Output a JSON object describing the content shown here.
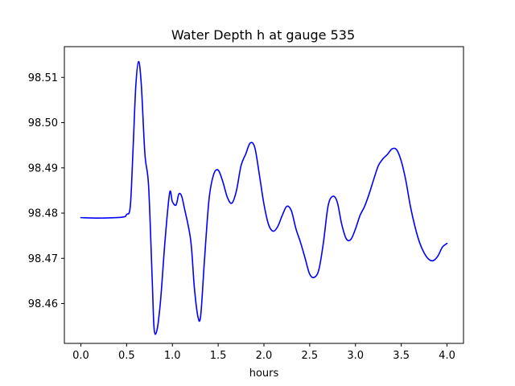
{
  "chart_data": {
    "type": "line",
    "title": "Water Depth h at gauge 535",
    "xlabel": "hours",
    "ylabel": "",
    "xlim": [
      -0.18,
      4.18
    ],
    "ylim": [
      98.4512,
      98.5168
    ],
    "xticks": [
      0.0,
      0.5,
      1.0,
      1.5,
      2.0,
      2.5,
      3.0,
      3.5,
      4.0
    ],
    "xtick_labels": [
      "0.0",
      "0.5",
      "1.0",
      "1.5",
      "2.0",
      "2.5",
      "3.0",
      "3.5",
      "4.0"
    ],
    "yticks": [
      98.46,
      98.47,
      98.48,
      98.49,
      98.5,
      98.51
    ],
    "ytick_labels": [
      "98.46",
      "98.47",
      "98.48",
      "98.49",
      "98.50",
      "98.51"
    ],
    "grid": false,
    "series": [
      {
        "name": "water depth h",
        "color": "#0000ff",
        "x": [
          0.0,
          0.2,
          0.45,
          0.5,
          0.54,
          0.57,
          0.6,
          0.63,
          0.66,
          0.7,
          0.74,
          0.78,
          0.8,
          0.83,
          0.87,
          0.92,
          0.97,
          1.0,
          1.04,
          1.07,
          1.1,
          1.13,
          1.2,
          1.24,
          1.28,
          1.31,
          1.35,
          1.4,
          1.45,
          1.5,
          1.55,
          1.6,
          1.65,
          1.7,
          1.75,
          1.8,
          1.85,
          1.9,
          1.95,
          2.0,
          2.05,
          2.1,
          2.15,
          2.2,
          2.25,
          2.3,
          2.35,
          2.4,
          2.45,
          2.5,
          2.55,
          2.6,
          2.65,
          2.7,
          2.75,
          2.8,
          2.85,
          2.9,
          2.95,
          3.0,
          3.05,
          3.1,
          3.15,
          3.2,
          3.25,
          3.3,
          3.35,
          3.4,
          3.45,
          3.5,
          3.55,
          3.6,
          3.65,
          3.7,
          3.75,
          3.8,
          3.85,
          3.9,
          3.95,
          4.0
        ],
        "y": [
          98.479,
          98.4789,
          98.4791,
          98.4797,
          98.4815,
          98.494,
          98.508,
          98.5135,
          98.5085,
          98.493,
          98.486,
          98.465,
          98.4545,
          98.454,
          98.4605,
          98.474,
          98.4845,
          98.4825,
          98.4818,
          98.4842,
          98.4838,
          98.4812,
          98.474,
          98.4635,
          98.457,
          98.4575,
          98.4695,
          98.483,
          98.4885,
          98.4895,
          98.487,
          98.4835,
          98.4822,
          98.485,
          98.4905,
          98.493,
          98.4955,
          98.4945,
          98.4885,
          98.482,
          98.4775,
          98.476,
          98.477,
          98.4795,
          98.4815,
          98.4805,
          98.4765,
          98.4735,
          98.47,
          98.4665,
          98.4658,
          98.4675,
          98.4735,
          98.4815,
          98.4837,
          98.4825,
          98.4775,
          98.4743,
          98.4742,
          98.4765,
          98.4795,
          98.4815,
          98.4843,
          98.4875,
          98.4905,
          98.492,
          98.493,
          98.4942,
          98.494,
          98.4915,
          98.4872,
          98.4815,
          98.477,
          98.4735,
          98.4712,
          98.4698,
          98.4695,
          98.4705,
          98.4725,
          98.4733
        ]
      }
    ]
  }
}
